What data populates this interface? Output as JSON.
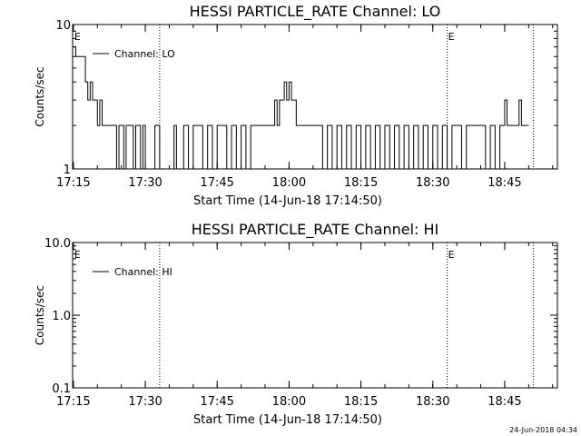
{
  "chart_data": [
    {
      "type": "line",
      "title": "HESSI PARTICLE_RATE Channel: LO",
      "xlabel": "Start Time (14-Jun-18 17:14:50)",
      "ylabel": "Counts/sec",
      "y_scale": "log",
      "ylim": [
        1,
        10
      ],
      "xlim": [
        "17:14:50",
        "18:56:00"
      ],
      "x_ticks": [
        "17:15",
        "17:30",
        "17:45",
        "18:00",
        "18:15",
        "18:30",
        "18:45"
      ],
      "y_ticks": [
        "1",
        "10"
      ],
      "legend": {
        "entries": [
          "Channel: LO"
        ],
        "position": "top-left"
      },
      "event_markers": [
        {
          "time": "17:15:00",
          "label": "E"
        },
        {
          "time": "18:33:00",
          "label": "E"
        }
      ],
      "vertical_lines": [
        "17:33:00",
        "18:33:00",
        "18:51:00"
      ],
      "series": [
        {
          "name": "Channel: LO",
          "points": [
            [
              "17:14:50",
              7
            ],
            [
              "17:15:30",
              6
            ],
            [
              "17:17:00",
              6
            ],
            [
              "17:17:30",
              4
            ],
            [
              "17:18:00",
              3
            ],
            [
              "17:18:30",
              4
            ],
            [
              "17:19:00",
              3
            ],
            [
              "17:19:30",
              3
            ],
            [
              "17:20:00",
              2
            ],
            [
              "17:20:30",
              3
            ],
            [
              "17:21:00",
              2
            ],
            [
              "17:22:00",
              2
            ],
            [
              "17:23:00",
              2
            ],
            [
              "17:24:00",
              1
            ],
            [
              "17:24:30",
              2
            ],
            [
              "17:25:30",
              1
            ],
            [
              "17:26:00",
              2
            ],
            [
              "17:27:00",
              2
            ],
            [
              "17:27:30",
              1
            ],
            [
              "17:28:00",
              2
            ],
            [
              "17:29:00",
              1
            ],
            [
              "17:29:30",
              2
            ],
            [
              "17:30:00",
              1
            ],
            [
              "17:31:00",
              1
            ],
            [
              "17:32:00",
              2
            ],
            [
              "17:33:00",
              1
            ],
            [
              "17:34:00",
              1
            ],
            [
              "17:35:00",
              1
            ],
            [
              "17:36:00",
              2
            ],
            [
              "17:36:30",
              1
            ],
            [
              "17:37:00",
              1
            ],
            [
              "17:38:00",
              2
            ],
            [
              "17:39:00",
              1
            ],
            [
              "17:40:00",
              2
            ],
            [
              "17:41:00",
              2
            ],
            [
              "17:42:00",
              1
            ],
            [
              "17:43:00",
              2
            ],
            [
              "17:44:00",
              1
            ],
            [
              "17:45:00",
              2
            ],
            [
              "17:46:00",
              2
            ],
            [
              "17:47:00",
              1
            ],
            [
              "17:48:00",
              2
            ],
            [
              "17:49:00",
              1
            ],
            [
              "17:50:00",
              2
            ],
            [
              "17:51:00",
              1
            ],
            [
              "17:52:00",
              2
            ],
            [
              "17:53:00",
              2
            ],
            [
              "17:54:00",
              2
            ],
            [
              "17:55:00",
              2
            ],
            [
              "17:56:00",
              2
            ],
            [
              "17:57:00",
              3
            ],
            [
              "17:57:30",
              2
            ],
            [
              "17:58:00",
              3
            ],
            [
              "17:58:30",
              3
            ],
            [
              "17:59:00",
              4
            ],
            [
              "17:59:30",
              3
            ],
            [
              "18:00:00",
              4
            ],
            [
              "18:00:30",
              3
            ],
            [
              "18:01:00",
              3
            ],
            [
              "18:01:30",
              2
            ],
            [
              "18:02:00",
              2
            ],
            [
              "18:03:00",
              2
            ],
            [
              "18:04:00",
              2
            ],
            [
              "18:05:00",
              2
            ],
            [
              "18:06:00",
              2
            ],
            [
              "18:07:00",
              1
            ],
            [
              "18:08:00",
              2
            ],
            [
              "18:09:00",
              1
            ],
            [
              "18:10:00",
              2
            ],
            [
              "18:11:00",
              1
            ],
            [
              "18:12:00",
              2
            ],
            [
              "18:13:00",
              1
            ],
            [
              "18:14:00",
              2
            ],
            [
              "18:15:00",
              1
            ],
            [
              "18:16:00",
              2
            ],
            [
              "18:17:00",
              1
            ],
            [
              "18:18:00",
              2
            ],
            [
              "18:19:00",
              1
            ],
            [
              "18:20:00",
              2
            ],
            [
              "18:21:00",
              1
            ],
            [
              "18:22:00",
              2
            ],
            [
              "18:23:00",
              1
            ],
            [
              "18:24:00",
              2
            ],
            [
              "18:25:00",
              1
            ],
            [
              "18:26:00",
              2
            ],
            [
              "18:27:00",
              1
            ],
            [
              "18:28:00",
              2
            ],
            [
              "18:29:00",
              1
            ],
            [
              "18:30:00",
              2
            ],
            [
              "18:31:00",
              1
            ],
            [
              "18:32:00",
              2
            ],
            [
              "18:33:00",
              1
            ],
            [
              "18:34:00",
              2
            ],
            [
              "18:35:00",
              2
            ],
            [
              "18:36:00",
              1
            ],
            [
              "18:37:00",
              2
            ],
            [
              "18:38:00",
              2
            ],
            [
              "18:39:00",
              2
            ],
            [
              "18:40:00",
              2
            ],
            [
              "18:41:00",
              1
            ],
            [
              "18:42:00",
              2
            ],
            [
              "18:43:00",
              1
            ],
            [
              "18:44:00",
              2
            ],
            [
              "18:45:00",
              3
            ],
            [
              "18:45:30",
              2
            ],
            [
              "18:46:00",
              2
            ],
            [
              "18:47:00",
              2
            ],
            [
              "18:48:00",
              3
            ],
            [
              "18:48:30",
              2
            ],
            [
              "18:49:00",
              2
            ],
            [
              "18:50:00",
              2
            ]
          ]
        }
      ]
    },
    {
      "type": "line",
      "title": "HESSI PARTICLE_RATE Channel: HI",
      "xlabel": "Start Time (14-Jun-18 17:14:50)",
      "ylabel": "Counts/sec",
      "y_scale": "log",
      "ylim": [
        0.1,
        10
      ],
      "xlim": [
        "17:14:50",
        "18:56:00"
      ],
      "x_ticks": [
        "17:15",
        "17:30",
        "17:45",
        "18:00",
        "18:15",
        "18:30",
        "18:45"
      ],
      "y_ticks": [
        "0.1",
        "1.0",
        "10.0"
      ],
      "legend": {
        "entries": [
          "Channel: HI"
        ],
        "position": "top-left"
      },
      "event_markers": [
        {
          "time": "17:15:00",
          "label": "E"
        },
        {
          "time": "18:33:00",
          "label": "E"
        }
      ],
      "vertical_lines": [
        "17:33:00",
        "18:33:00",
        "18:51:00"
      ],
      "series": [
        {
          "name": "Channel: HI",
          "points": []
        }
      ]
    }
  ],
  "footer": {
    "timestamp": "24-Jun-2018 04:34"
  }
}
